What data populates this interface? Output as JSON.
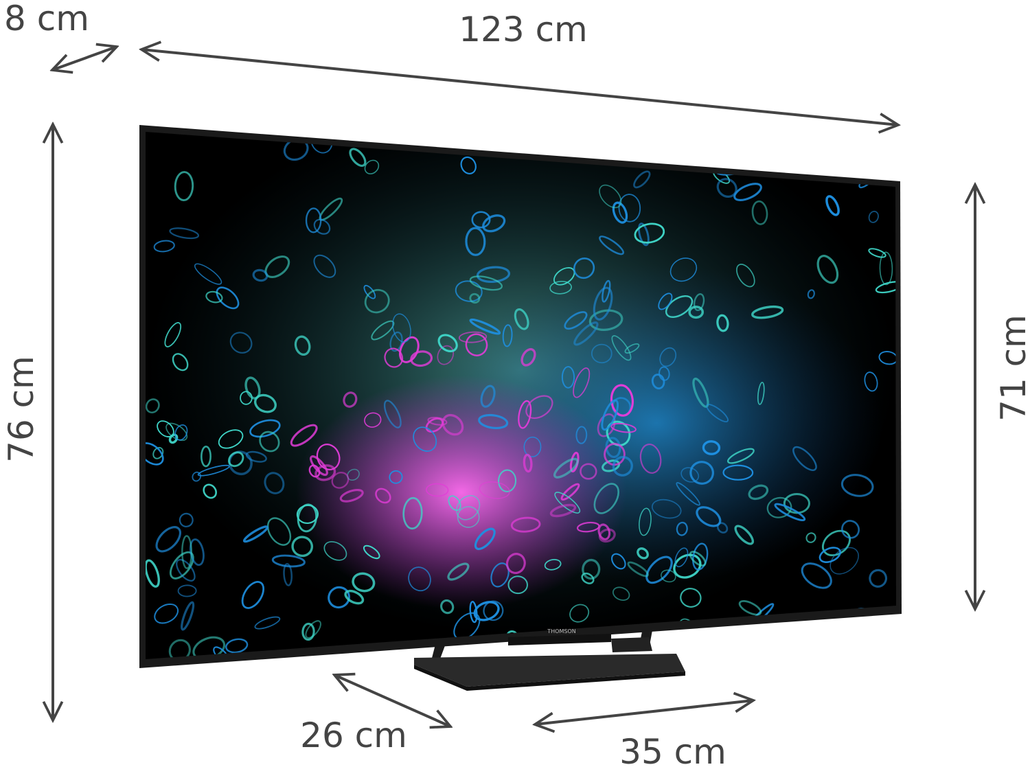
{
  "product": {
    "brand_logo": "THOMSON",
    "colors": {
      "bezel": "#1a1a1a",
      "arrow": "#444444",
      "label": "#444444",
      "screen_bg": "#000000",
      "accent_cyan": "#3fd6c8",
      "accent_blue": "#1e8fe0",
      "accent_pink": "#e23cd8"
    }
  },
  "dimensions": {
    "depth_label": "8 cm",
    "width_label": "123 cm",
    "total_height_label": "76 cm",
    "screen_height_label": "71 cm",
    "stand_depth_label": "26 cm",
    "stand_width_label": "35 cm"
  }
}
